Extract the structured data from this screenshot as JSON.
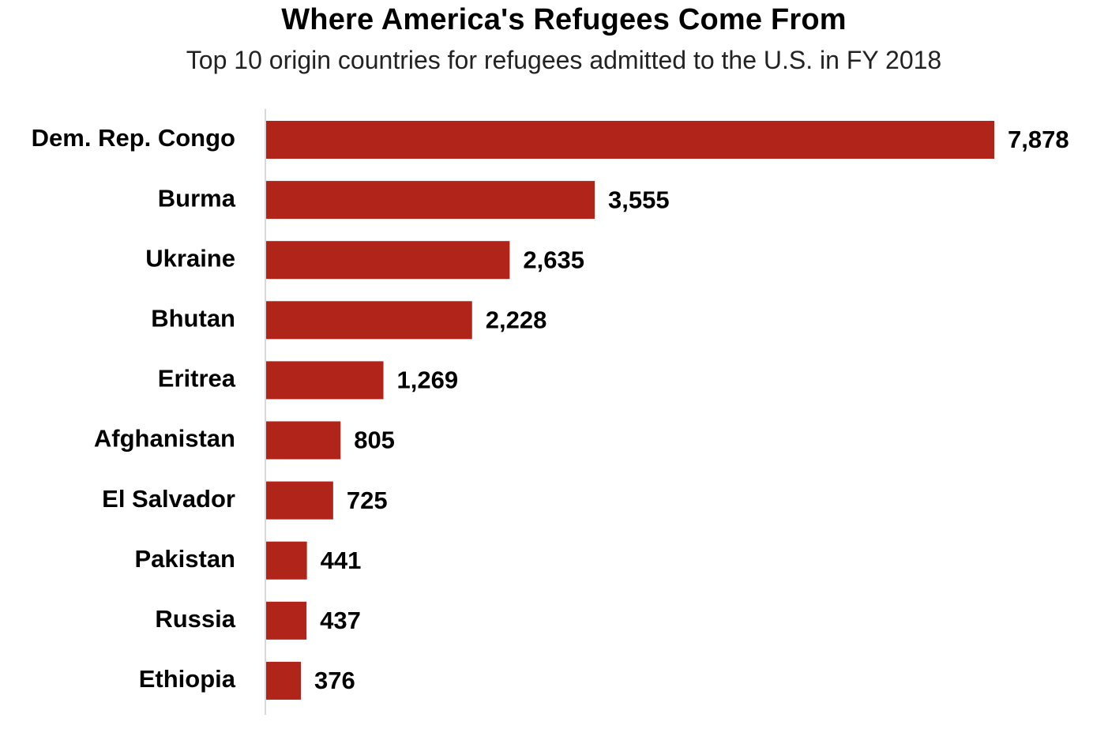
{
  "chart_data": {
    "type": "bar",
    "orientation": "horizontal",
    "title": "Where America's Refugees Come From",
    "subtitle": "Top 10 origin countries for refugees admitted to the U.S. in FY 2018",
    "categories": [
      "Dem. Rep. Congo",
      "Burma",
      "Ukraine",
      "Bhutan",
      "Eritrea",
      "Afghanistan",
      "El Salvador",
      "Pakistan",
      "Russia",
      "Ethiopia"
    ],
    "values": [
      7878,
      3555,
      2635,
      2228,
      1269,
      805,
      725,
      441,
      437,
      376
    ],
    "value_labels": [
      "7,878",
      "3,555",
      "2,635",
      "2,228",
      "1,269",
      "805",
      "725",
      "441",
      "437",
      "376"
    ],
    "xlim": [
      0,
      7878
    ],
    "bar_color": "#b0241a",
    "axis_color": "#d9d9d9",
    "grid": false,
    "legend": "none"
  }
}
